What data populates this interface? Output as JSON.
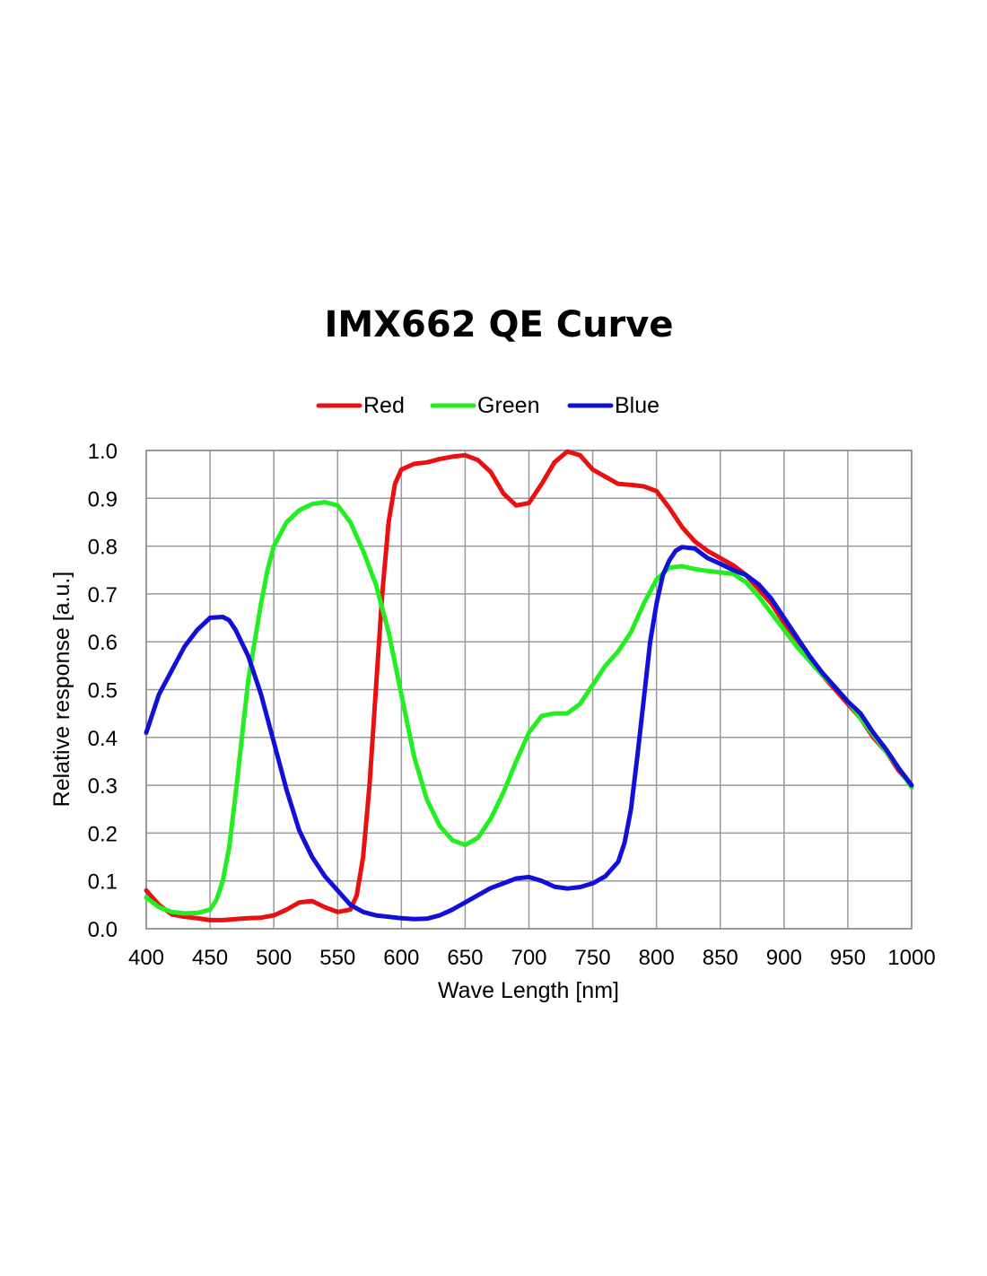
{
  "chart_data": {
    "type": "line",
    "title": "IMX662 QE Curve",
    "xlabel": "Wave Length [nm]",
    "ylabel": "Relative response [a.u.]",
    "xlim": [
      400,
      1000
    ],
    "ylim": [
      0,
      1.0
    ],
    "x_ticks": [
      "400",
      "450",
      "500",
      "550",
      "600",
      "650",
      "700",
      "750",
      "800",
      "850",
      "900",
      "950",
      "1000"
    ],
    "y_ticks": [
      "0.0",
      "0.1",
      "0.2",
      "0.3",
      "0.4",
      "0.5",
      "0.6",
      "0.7",
      "0.8",
      "0.9",
      "1.0"
    ],
    "grid": true,
    "legend_position": "top-center",
    "series": [
      {
        "name": "Red",
        "color": "#e81010",
        "points": [
          [
            400,
            0.08
          ],
          [
            410,
            0.05
          ],
          [
            420,
            0.03
          ],
          [
            430,
            0.025
          ],
          [
            440,
            0.022
          ],
          [
            450,
            0.018
          ],
          [
            460,
            0.018
          ],
          [
            470,
            0.02
          ],
          [
            480,
            0.022
          ],
          [
            490,
            0.023
          ],
          [
            500,
            0.028
          ],
          [
            510,
            0.04
          ],
          [
            520,
            0.055
          ],
          [
            530,
            0.058
          ],
          [
            540,
            0.045
          ],
          [
            550,
            0.035
          ],
          [
            560,
            0.04
          ],
          [
            565,
            0.07
          ],
          [
            570,
            0.15
          ],
          [
            575,
            0.3
          ],
          [
            580,
            0.5
          ],
          [
            585,
            0.7
          ],
          [
            590,
            0.85
          ],
          [
            595,
            0.93
          ],
          [
            600,
            0.96
          ],
          [
            610,
            0.972
          ],
          [
            620,
            0.975
          ],
          [
            630,
            0.982
          ],
          [
            640,
            0.987
          ],
          [
            650,
            0.99
          ],
          [
            660,
            0.98
          ],
          [
            670,
            0.955
          ],
          [
            680,
            0.91
          ],
          [
            690,
            0.885
          ],
          [
            700,
            0.89
          ],
          [
            710,
            0.93
          ],
          [
            720,
            0.975
          ],
          [
            730,
            0.998
          ],
          [
            740,
            0.99
          ],
          [
            750,
            0.96
          ],
          [
            760,
            0.945
          ],
          [
            770,
            0.93
          ],
          [
            780,
            0.928
          ],
          [
            790,
            0.925
          ],
          [
            800,
            0.915
          ],
          [
            810,
            0.88
          ],
          [
            820,
            0.84
          ],
          [
            830,
            0.81
          ],
          [
            840,
            0.79
          ],
          [
            850,
            0.775
          ],
          [
            860,
            0.76
          ],
          [
            870,
            0.74
          ],
          [
            880,
            0.71
          ],
          [
            890,
            0.68
          ],
          [
            900,
            0.64
          ],
          [
            910,
            0.6
          ],
          [
            920,
            0.56
          ],
          [
            930,
            0.53
          ],
          [
            940,
            0.5
          ],
          [
            950,
            0.47
          ],
          [
            960,
            0.44
          ],
          [
            970,
            0.4
          ],
          [
            980,
            0.37
          ],
          [
            990,
            0.33
          ],
          [
            1000,
            0.3
          ]
        ]
      },
      {
        "name": "Green",
        "color": "#22ee22",
        "points": [
          [
            400,
            0.065
          ],
          [
            410,
            0.045
          ],
          [
            420,
            0.035
          ],
          [
            430,
            0.032
          ],
          [
            440,
            0.033
          ],
          [
            450,
            0.04
          ],
          [
            455,
            0.06
          ],
          [
            460,
            0.1
          ],
          [
            465,
            0.17
          ],
          [
            470,
            0.28
          ],
          [
            475,
            0.4
          ],
          [
            480,
            0.52
          ],
          [
            485,
            0.6
          ],
          [
            490,
            0.68
          ],
          [
            495,
            0.75
          ],
          [
            500,
            0.8
          ],
          [
            510,
            0.85
          ],
          [
            520,
            0.875
          ],
          [
            530,
            0.888
          ],
          [
            540,
            0.892
          ],
          [
            550,
            0.885
          ],
          [
            560,
            0.85
          ],
          [
            570,
            0.79
          ],
          [
            580,
            0.72
          ],
          [
            590,
            0.62
          ],
          [
            600,
            0.49
          ],
          [
            610,
            0.36
          ],
          [
            620,
            0.27
          ],
          [
            630,
            0.215
          ],
          [
            640,
            0.185
          ],
          [
            650,
            0.175
          ],
          [
            660,
            0.19
          ],
          [
            670,
            0.23
          ],
          [
            680,
            0.285
          ],
          [
            690,
            0.35
          ],
          [
            700,
            0.41
          ],
          [
            710,
            0.445
          ],
          [
            720,
            0.45
          ],
          [
            730,
            0.45
          ],
          [
            740,
            0.47
          ],
          [
            750,
            0.51
          ],
          [
            760,
            0.55
          ],
          [
            770,
            0.58
          ],
          [
            780,
            0.62
          ],
          [
            790,
            0.68
          ],
          [
            800,
            0.73
          ],
          [
            810,
            0.755
          ],
          [
            820,
            0.758
          ],
          [
            830,
            0.752
          ],
          [
            840,
            0.748
          ],
          [
            850,
            0.745
          ],
          [
            860,
            0.742
          ],
          [
            870,
            0.725
          ],
          [
            880,
            0.695
          ],
          [
            890,
            0.66
          ],
          [
            900,
            0.625
          ],
          [
            910,
            0.59
          ],
          [
            920,
            0.56
          ],
          [
            930,
            0.53
          ],
          [
            940,
            0.505
          ],
          [
            950,
            0.475
          ],
          [
            960,
            0.44
          ],
          [
            970,
            0.405
          ],
          [
            980,
            0.37
          ],
          [
            990,
            0.335
          ],
          [
            1000,
            0.295
          ]
        ]
      },
      {
        "name": "Blue",
        "color": "#1010d8",
        "points": [
          [
            400,
            0.41
          ],
          [
            410,
            0.49
          ],
          [
            420,
            0.54
          ],
          [
            430,
            0.59
          ],
          [
            440,
            0.625
          ],
          [
            450,
            0.65
          ],
          [
            460,
            0.652
          ],
          [
            465,
            0.645
          ],
          [
            470,
            0.625
          ],
          [
            480,
            0.57
          ],
          [
            490,
            0.49
          ],
          [
            500,
            0.39
          ],
          [
            510,
            0.29
          ],
          [
            520,
            0.205
          ],
          [
            530,
            0.15
          ],
          [
            540,
            0.11
          ],
          [
            550,
            0.08
          ],
          [
            560,
            0.05
          ],
          [
            570,
            0.035
          ],
          [
            580,
            0.028
          ],
          [
            590,
            0.025
          ],
          [
            600,
            0.022
          ],
          [
            610,
            0.02
          ],
          [
            620,
            0.021
          ],
          [
            630,
            0.028
          ],
          [
            640,
            0.04
          ],
          [
            650,
            0.055
          ],
          [
            660,
            0.07
          ],
          [
            670,
            0.085
          ],
          [
            680,
            0.095
          ],
          [
            690,
            0.105
          ],
          [
            700,
            0.108
          ],
          [
            710,
            0.1
          ],
          [
            720,
            0.088
          ],
          [
            730,
            0.084
          ],
          [
            740,
            0.087
          ],
          [
            750,
            0.095
          ],
          [
            760,
            0.11
          ],
          [
            770,
            0.14
          ],
          [
            775,
            0.18
          ],
          [
            780,
            0.25
          ],
          [
            785,
            0.36
          ],
          [
            790,
            0.48
          ],
          [
            795,
            0.6
          ],
          [
            800,
            0.68
          ],
          [
            805,
            0.74
          ],
          [
            810,
            0.77
          ],
          [
            815,
            0.79
          ],
          [
            820,
            0.798
          ],
          [
            830,
            0.795
          ],
          [
            840,
            0.775
          ],
          [
            850,
            0.763
          ],
          [
            860,
            0.75
          ],
          [
            870,
            0.74
          ],
          [
            880,
            0.72
          ],
          [
            890,
            0.69
          ],
          [
            900,
            0.65
          ],
          [
            910,
            0.61
          ],
          [
            920,
            0.57
          ],
          [
            930,
            0.535
          ],
          [
            940,
            0.505
          ],
          [
            950,
            0.475
          ],
          [
            960,
            0.45
          ],
          [
            970,
            0.41
          ],
          [
            980,
            0.375
          ],
          [
            990,
            0.335
          ],
          [
            1000,
            0.3
          ]
        ]
      }
    ]
  }
}
